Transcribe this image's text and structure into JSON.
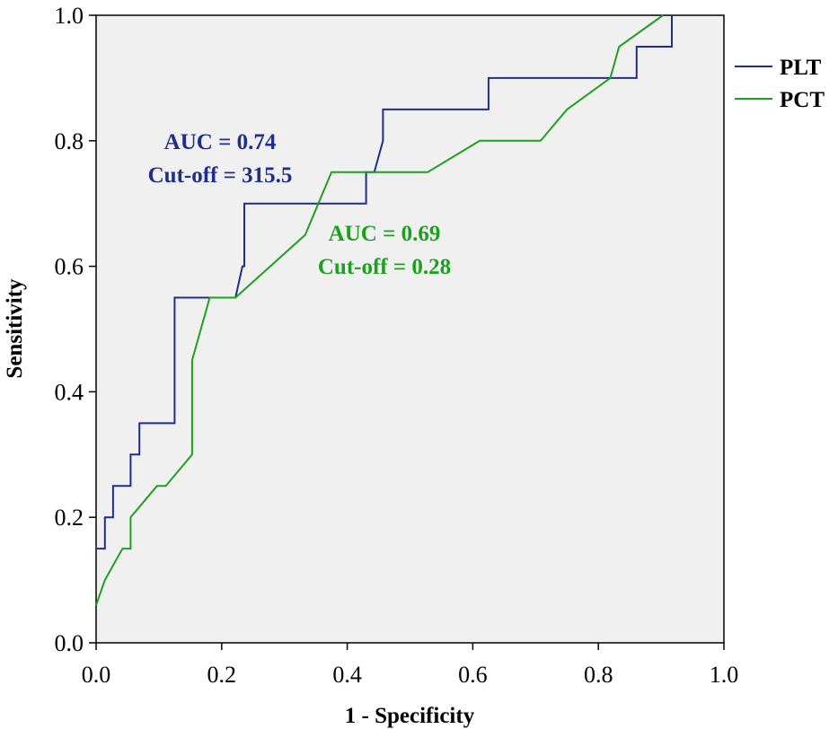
{
  "chart_data": {
    "type": "line",
    "xlabel": "1 - Specificity",
    "ylabel": "Sensitivity",
    "xlim": [
      0,
      1
    ],
    "ylim": [
      0,
      1
    ],
    "xticks": [
      "0.0",
      "0.2",
      "0.4",
      "0.6",
      "0.8",
      "1.0"
    ],
    "yticks": [
      "0.0",
      "0.2",
      "0.4",
      "0.6",
      "0.8",
      "1.0"
    ],
    "grid": false,
    "legend_position": "right",
    "series": [
      {
        "name": "PLT",
        "color": "#1f2e8a",
        "x": [
          0,
          0,
          0.014,
          0.014,
          0.027,
          0.027,
          0.055,
          0.055,
          0.069,
          0.069,
          0.125,
          0.125,
          0.222,
          0.233,
          0.236,
          0.236,
          0.43,
          0.43,
          0.443,
          0.457,
          0.457,
          0.625,
          0.625,
          0.861,
          0.861,
          0.917,
          0.917
        ],
        "y": [
          0.15,
          0.15,
          0.15,
          0.2,
          0.2,
          0.25,
          0.25,
          0.3,
          0.3,
          0.35,
          0.35,
          0.55,
          0.55,
          0.6,
          0.6,
          0.7,
          0.7,
          0.75,
          0.75,
          0.8,
          0.85,
          0.85,
          0.9,
          0.9,
          0.95,
          0.95,
          1.0
        ]
      },
      {
        "name": "PCT",
        "color": "#1ea01e",
        "x": [
          0,
          0.014,
          0.042,
          0.055,
          0.055,
          0.097,
          0.111,
          0.153,
          0.153,
          0.181,
          0.222,
          0.333,
          0.375,
          0.528,
          0.611,
          0.708,
          0.75,
          0.819,
          0.833,
          0.903
        ],
        "y": [
          0.06,
          0.1,
          0.15,
          0.15,
          0.2,
          0.25,
          0.25,
          0.3,
          0.45,
          0.55,
          0.55,
          0.65,
          0.75,
          0.75,
          0.8,
          0.8,
          0.85,
          0.9,
          0.95,
          1.0
        ]
      }
    ],
    "annotations": [
      {
        "lines": [
          "AUC = 0.74",
          "Cut-off = 315.5"
        ],
        "color": "#1f2e8a"
      },
      {
        "lines": [
          "AUC = 0.69",
          "Cut-off = 0.28"
        ],
        "color": "#1ea01e"
      }
    ]
  }
}
